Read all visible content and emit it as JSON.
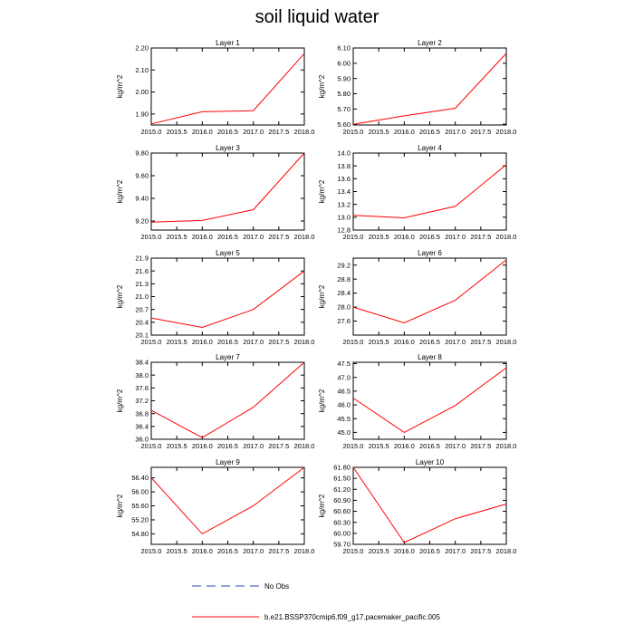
{
  "title": "soil liquid water",
  "legend": {
    "obs_label": "No Obs",
    "obs_color": "#3344aa",
    "model_label": "b.e21.BSSP370cmip6.f09_g17.pacemaker_pacific.005",
    "model_color": "#ff0000"
  },
  "chart_data": [
    {
      "type": "line",
      "title": "Layer 1",
      "ylabel": "kg/m^2",
      "x": [
        2015,
        2016,
        2017,
        2018
      ],
      "values": [
        1.855,
        1.91,
        1.915,
        2.175
      ],
      "xlim": [
        2015,
        2018
      ],
      "xticks": [
        "2015.0",
        "2015.5",
        "2016.0",
        "2016.5",
        "2017.0",
        "2017.5",
        "2018.0"
      ],
      "ylim": [
        1.85,
        2.2
      ],
      "yticks": [
        "1.90",
        "2.00",
        "2.10",
        "2.20"
      ],
      "ytick_values": [
        1.9,
        2.0,
        2.1,
        2.2
      ]
    },
    {
      "type": "line",
      "title": "Layer 2",
      "ylabel": "kg/m^2",
      "x": [
        2015,
        2016,
        2017,
        2018
      ],
      "values": [
        5.6,
        5.655,
        5.705,
        6.065
      ],
      "xlim": [
        2015,
        2018
      ],
      "xticks": [
        "2015.0",
        "2015.5",
        "2016.0",
        "2016.5",
        "2017.0",
        "2017.5",
        "2018.0"
      ],
      "ylim": [
        5.595,
        6.1
      ],
      "yticks": [
        "5.60",
        "5.70",
        "5.80",
        "5.90",
        "6.00",
        "6.10"
      ],
      "ytick_values": [
        5.6,
        5.7,
        5.8,
        5.9,
        6.0,
        6.1
      ]
    },
    {
      "type": "line",
      "title": "Layer 3",
      "ylabel": "kg/m^2",
      "x": [
        2015,
        2016,
        2017,
        2018
      ],
      "values": [
        9.19,
        9.205,
        9.3,
        9.8
      ],
      "xlim": [
        2015,
        2018
      ],
      "xticks": [
        "2015.0",
        "2015.5",
        "2016.0",
        "2016.5",
        "2017.0",
        "2017.5",
        "2018.0"
      ],
      "ylim": [
        9.12,
        9.8
      ],
      "yticks": [
        "9.20",
        "9.40",
        "9.60",
        "9.80"
      ],
      "ytick_values": [
        9.2,
        9.4,
        9.6,
        9.8
      ]
    },
    {
      "type": "line",
      "title": "Layer 4",
      "ylabel": "kg/m^2",
      "x": [
        2015,
        2016,
        2017,
        2018
      ],
      "values": [
        13.03,
        12.99,
        13.17,
        13.82
      ],
      "xlim": [
        2015,
        2018
      ],
      "xticks": [
        "2015.0",
        "2015.5",
        "2016.0",
        "2016.5",
        "2017.0",
        "2017.5",
        "2018.0"
      ],
      "ylim": [
        12.8,
        14.0
      ],
      "yticks": [
        "12.8",
        "13.0",
        "13.2",
        "13.4",
        "13.6",
        "13.8",
        "14.0"
      ],
      "ytick_values": [
        12.8,
        13.0,
        13.2,
        13.4,
        13.6,
        13.8,
        14.0
      ]
    },
    {
      "type": "line",
      "title": "Layer 5",
      "ylabel": "kg/m^2",
      "x": [
        2015,
        2016,
        2017,
        2018
      ],
      "values": [
        20.5,
        20.28,
        20.7,
        21.6
      ],
      "xlim": [
        2015,
        2018
      ],
      "xticks": [
        "2015.0",
        "2015.5",
        "2016.0",
        "2016.5",
        "2017.0",
        "2017.5",
        "2018.0"
      ],
      "ylim": [
        20.1,
        21.9
      ],
      "yticks": [
        "20.1",
        "20.4",
        "20.7",
        "21.0",
        "21.3",
        "21.6",
        "21.9"
      ],
      "ytick_values": [
        20.1,
        20.4,
        20.7,
        21.0,
        21.3,
        21.6,
        21.9
      ]
    },
    {
      "type": "line",
      "title": "Layer 6",
      "ylabel": "kg/m^2",
      "x": [
        2015,
        2016,
        2017,
        2018
      ],
      "values": [
        28.0,
        27.55,
        28.2,
        29.35
      ],
      "xlim": [
        2015,
        2018
      ],
      "xticks": [
        "2015.0",
        "2015.5",
        "2016.0",
        "2016.5",
        "2017.0",
        "2017.5",
        "2018.0"
      ],
      "ylim": [
        27.2,
        29.4
      ],
      "yticks": [
        "27.6",
        "28.0",
        "28.4",
        "28.8",
        "29.2"
      ],
      "ytick_values": [
        27.6,
        28.0,
        28.4,
        28.8,
        29.2
      ]
    },
    {
      "type": "line",
      "title": "Layer 7",
      "ylabel": "kg/m^2",
      "x": [
        2015,
        2016,
        2017,
        2018
      ],
      "values": [
        36.9,
        36.05,
        37.0,
        38.4
      ],
      "xlim": [
        2015,
        2018
      ],
      "xticks": [
        "2015.0",
        "2015.5",
        "2016.0",
        "2016.5",
        "2017.0",
        "2017.5",
        "2018.0"
      ],
      "ylim": [
        36.0,
        38.4
      ],
      "yticks": [
        "36.0",
        "36.4",
        "36.8",
        "37.2",
        "37.6",
        "38.0",
        "38.4"
      ],
      "ytick_values": [
        36.0,
        36.4,
        36.8,
        37.2,
        37.6,
        38.0,
        38.4
      ]
    },
    {
      "type": "line",
      "title": "Layer 8",
      "ylabel": "kg/m^2",
      "x": [
        2015,
        2016,
        2017,
        2018
      ],
      "values": [
        46.25,
        45.0,
        45.98,
        47.35
      ],
      "xlim": [
        2015,
        2018
      ],
      "xticks": [
        "2015.0",
        "2015.5",
        "2016.0",
        "2016.5",
        "2017.0",
        "2017.5",
        "2018.0"
      ],
      "ylim": [
        44.75,
        47.55
      ],
      "yticks": [
        "45.0",
        "45.5",
        "46.0",
        "46.5",
        "47.0",
        "47.5"
      ],
      "ytick_values": [
        45.0,
        45.5,
        46.0,
        46.5,
        47.0,
        47.5
      ]
    },
    {
      "type": "line",
      "title": "Layer 9",
      "ylabel": "kg/m^2",
      "x": [
        2015,
        2016,
        2017,
        2018
      ],
      "values": [
        56.4,
        54.8,
        55.6,
        56.7
      ],
      "xlim": [
        2015,
        2018
      ],
      "xticks": [
        "2015.0",
        "2015.5",
        "2016.0",
        "2016.5",
        "2017.0",
        "2017.5",
        "2018.0"
      ],
      "ylim": [
        54.5,
        56.7
      ],
      "yticks": [
        "54.80",
        "55.20",
        "55.60",
        "56.00",
        "56.40"
      ],
      "ytick_values": [
        54.8,
        55.2,
        55.6,
        56.0,
        56.4
      ]
    },
    {
      "type": "line",
      "title": "Layer 10",
      "ylabel": "kg/m^2",
      "x": [
        2015,
        2016,
        2017,
        2018
      ],
      "values": [
        61.8,
        59.75,
        60.4,
        60.8
      ],
      "xlim": [
        2015,
        2018
      ],
      "xticks": [
        "2015.0",
        "2015.5",
        "2016.0",
        "2016.5",
        "2017.0",
        "2017.5",
        "2018.0"
      ],
      "ylim": [
        59.7,
        61.8
      ],
      "yticks": [
        "59.70",
        "60.00",
        "60.30",
        "60.60",
        "60.90",
        "61.20",
        "61.50",
        "61.80"
      ],
      "ytick_values": [
        59.7,
        60.0,
        60.3,
        60.6,
        60.9,
        61.2,
        61.5,
        61.8
      ]
    }
  ]
}
